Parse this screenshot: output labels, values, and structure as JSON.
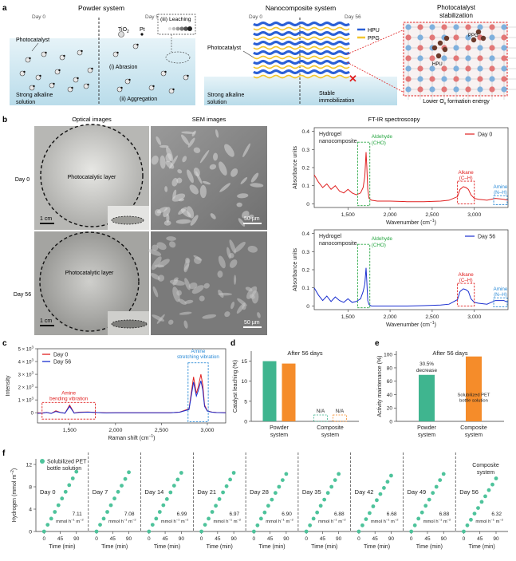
{
  "panel_a": {
    "label": "a",
    "powder": {
      "title": "Powder system",
      "day0": "Day 0",
      "day56": "Day 56",
      "photocatalyst": "Photocatalyst",
      "tio2": "TiO",
      "tio2_sub": "2",
      "pt": "Pt",
      "leaching": "(iii) Leaching",
      "abrasion": "(i) Abrasion",
      "aggregation": "(ii) Aggregation",
      "solution": [
        "Strong alkaline",
        "solution"
      ]
    },
    "nano": {
      "title": "Nanocomposite system",
      "day0": "Day 0",
      "day56": "Day 56",
      "photocatalyst": "Photocatalyst",
      "legend_hpu": "HPU",
      "legend_ppg": "PPG",
      "stable": [
        "Stable",
        "immobilization"
      ],
      "solution": [
        "Strong alkaline",
        "solution"
      ]
    },
    "stab": {
      "title": [
        "Photocatalyst",
        "stabilization"
      ],
      "ppg": "PPG",
      "hpu": "HPU",
      "footer_pre": "Lower O",
      "footer_sub": "v",
      "footer_post": " formation energy"
    },
    "colors": {
      "water": "#d7ecf3",
      "hpu": "#2a5fd6",
      "ppg": "#f2c62f",
      "red": "#e02020"
    }
  },
  "panel_b": {
    "label": "b",
    "col_optical": "Optical images",
    "col_sem": "SEM images",
    "col_ftir": "FT-IR spectroscopy",
    "row_day0": "Day 0",
    "row_day56": "Day 56",
    "photocatalytic_layer": "Photocatalytic layer",
    "scale_1cm": "1 cm",
    "scale_50um": "50 µm",
    "hydrogel": [
      "Hydrogel",
      "nanocomposite"
    ],
    "aldehyde": [
      "Aldehyde",
      "(CHO)"
    ],
    "alkane": [
      "Alkane",
      "(C–H)"
    ],
    "amine": [
      "Amine",
      "(N–H)"
    ],
    "xlabel": "Wavenumber (cm",
    "xlabel_sup": "−1",
    "xlabel_end": ")",
    "ylabel": "Absorbance units",
    "legend_day0": "Day 0",
    "legend_day56": "Day 56",
    "yticks": [
      "0",
      "0.1",
      "0.2",
      "0.3",
      "0.4"
    ],
    "xticks": [
      "1,500",
      "2,000",
      "2,500",
      "3,000"
    ]
  },
  "panel_c": {
    "label": "c",
    "legend": [
      "Day 0",
      "Day 56"
    ],
    "yticks": [
      "0",
      "1 × 10",
      "2 × 10",
      "3 × 10",
      "4 × 10",
      "5 × 10"
    ],
    "ytick_exp": "3",
    "ylabel": "Intensity",
    "xticks": [
      "1,500",
      "2,000",
      "2,500",
      "3,000"
    ],
    "xlabel": "Raman shift (cm",
    "xlabel_sup": "−1",
    "xlabel_end": ")",
    "amine_bending": [
      "Amine",
      "bending vibration"
    ],
    "amine_stretching": [
      "Amine",
      "stretching vibration"
    ]
  },
  "panel_d": {
    "label": "d",
    "title": "After 56 days",
    "ylabel": "Catalyst leaching (%)",
    "yticks": [
      "0",
      "5",
      "10",
      "15"
    ],
    "categories": [
      "Powder",
      "system",
      "Composite",
      "system"
    ],
    "na": "N/A"
  },
  "panel_e": {
    "label": "e",
    "title": "After 56 days",
    "ylabel": "Activity maintenance (%)",
    "yticks": [
      "0",
      "20",
      "40",
      "60",
      "80",
      "100"
    ],
    "decrease": [
      "30.5%",
      "decrease"
    ],
    "solubilized": [
      "Solubilized PET",
      "bottle solution"
    ],
    "categories": [
      "Powder",
      "system",
      "Composite",
      "system"
    ]
  },
  "panel_f": {
    "label": "f",
    "legend": [
      "Solubilized PET",
      "bottle solution"
    ],
    "ylabel": "Hydrogen (mmol m",
    "ylabel_sup": "−2",
    "ylabel_end": ")",
    "yticks": [
      "0",
      "4",
      "8",
      "12"
    ],
    "xticks": [
      "0",
      "45",
      "90"
    ],
    "xlabel": "Time (min)",
    "composite": [
      "Composite",
      "system"
    ],
    "rate_unit_pre": "mmol h",
    "rate_unit_sup1": "−1",
    "rate_unit_mid": " m",
    "rate_unit_sup2": "−2"
  },
  "chart_data": [
    {
      "type": "line",
      "panel": "b-day0",
      "title": "Hydrogel nanocomposite",
      "xlabel": "Wavenumber (cm−1)",
      "ylabel": "Absorbance units",
      "ylim": [
        -0.02,
        0.42
      ],
      "xlim": [
        1100,
        3400
      ],
      "series": [
        {
          "name": "Day 0",
          "color": "#e02020",
          "x": [
            1100,
            1150,
            1200,
            1250,
            1300,
            1350,
            1400,
            1450,
            1500,
            1550,
            1600,
            1650,
            1680,
            1700,
            1715,
            1725,
            1735,
            1750,
            1780,
            1850,
            2000,
            2200,
            2400,
            2600,
            2700,
            2800,
            2830,
            2870,
            2900,
            2930,
            2960,
            3000,
            3050,
            3150,
            3250,
            3350,
            3400
          ],
          "y": [
            0.16,
            0.12,
            0.09,
            0.11,
            0.08,
            0.1,
            0.07,
            0.06,
            0.08,
            0.06,
            0.05,
            0.06,
            0.09,
            0.15,
            0.285,
            0.2,
            0.08,
            0.03,
            0.02,
            0.015,
            0.015,
            0.012,
            0.012,
            0.015,
            0.02,
            0.04,
            0.08,
            0.095,
            0.09,
            0.08,
            0.05,
            0.03,
            0.025,
            0.02,
            0.03,
            0.025,
            0.02
          ]
        }
      ]
    },
    {
      "type": "line",
      "panel": "b-day56",
      "title": "Hydrogel nanocomposite",
      "xlabel": "Wavenumber (cm−1)",
      "ylabel": "Absorbance units",
      "ylim": [
        -0.02,
        0.42
      ],
      "xlim": [
        1100,
        3400
      ],
      "series": [
        {
          "name": "Day 56",
          "color": "#1a2fd0",
          "x": [
            1100,
            1150,
            1200,
            1250,
            1300,
            1350,
            1400,
            1450,
            1500,
            1550,
            1600,
            1650,
            1680,
            1700,
            1715,
            1725,
            1735,
            1750,
            1780,
            1850,
            2000,
            2200,
            2400,
            2600,
            2700,
            2800,
            2830,
            2870,
            2900,
            2930,
            2960,
            3000,
            3050,
            3150,
            3250,
            3350,
            3400
          ],
          "y": [
            0.1,
            0.06,
            0.03,
            0.055,
            0.025,
            0.05,
            0.03,
            0.02,
            0.04,
            0.02,
            0.025,
            0.04,
            0.08,
            0.12,
            0.21,
            0.13,
            0.03,
            0.008,
            0.0,
            0.0,
            0.0,
            0.0,
            0.002,
            0.005,
            0.01,
            0.035,
            0.08,
            0.095,
            0.09,
            0.08,
            0.04,
            0.02,
            0.015,
            0.01,
            0.03,
            0.03,
            0.02
          ]
        }
      ]
    },
    {
      "type": "line",
      "panel": "c",
      "xlabel": "Raman shift (cm−1)",
      "ylabel": "Intensity",
      "ylim": [
        -800,
        5000
      ],
      "xlim": [
        1150,
        3200
      ],
      "series": [
        {
          "name": "Day 0",
          "color": "#e02020",
          "x": [
            1150,
            1200,
            1250,
            1300,
            1350,
            1400,
            1450,
            1500,
            1550,
            1600,
            1700,
            1800,
            1900,
            2000,
            2200,
            2400,
            2600,
            2700,
            2800,
            2850,
            2880,
            2900,
            2930,
            2950,
            2970,
            3000,
            3050,
            3100,
            3200
          ],
          "y": [
            0,
            -20,
            30,
            -50,
            150,
            20,
            -30,
            600,
            -20,
            40,
            60,
            20,
            -10,
            0,
            0,
            0,
            0,
            50,
            300,
            2800,
            1500,
            2000,
            3000,
            2200,
            600,
            150,
            50,
            20,
            0
          ]
        },
        {
          "name": "Day 56",
          "color": "#1a2fd0",
          "x": [
            1150,
            1200,
            1250,
            1300,
            1350,
            1400,
            1450,
            1500,
            1550,
            1600,
            1700,
            1800,
            1900,
            2000,
            2200,
            2400,
            2600,
            2700,
            2800,
            2850,
            2880,
            2900,
            2930,
            2950,
            2970,
            3000,
            3050,
            3100,
            3200
          ],
          "y": [
            -50,
            -30,
            20,
            -60,
            100,
            10,
            -40,
            500,
            -30,
            20,
            40,
            10,
            -20,
            -10,
            -10,
            -10,
            -5,
            40,
            250,
            2400,
            1300,
            1700,
            2500,
            1800,
            500,
            120,
            40,
            10,
            -10
          ]
        }
      ]
    },
    {
      "type": "bar",
      "panel": "d",
      "title": "After 56 days",
      "ylabel": "Catalyst leaching (%)",
      "ylim": [
        0,
        17.5
      ],
      "categories": [
        "Powder system",
        "Composite system"
      ],
      "series": [
        {
          "color": "#3fb58f",
          "values": [
            15.0,
            0
          ]
        },
        {
          "color": "#f58c2a",
          "values": [
            14.4,
            0
          ]
        }
      ]
    },
    {
      "type": "bar",
      "panel": "e",
      "title": "After 56 days",
      "ylabel": "Activity maintenance (%)",
      "ylim": [
        0,
        105
      ],
      "categories": [
        "Powder system",
        "Composite system"
      ],
      "values": [
        69.5,
        97
      ],
      "colors": [
        "#3fb58f",
        "#f58c2a"
      ]
    },
    {
      "type": "scatter",
      "panel": "f",
      "ylabel": "Hydrogen (mmol m−2)",
      "xlabel": "Time (min)",
      "ylim": [
        0,
        13
      ],
      "xlim": [
        -5,
        110
      ],
      "series": [
        {
          "day": "Day 0",
          "rate": "7.11",
          "points": [
            [
              0,
              0
            ],
            [
              10,
              1.2
            ],
            [
              20,
              2.3
            ],
            [
              30,
              3.5
            ],
            [
              40,
              4.7
            ],
            [
              50,
              5.9
            ],
            [
              60,
              7.1
            ],
            [
              70,
              8.3
            ],
            [
              80,
              9.5
            ],
            [
              90,
              10.7
            ]
          ]
        },
        {
          "day": "Day 7",
          "rate": "7.08",
          "points": [
            [
              0,
              0
            ],
            [
              10,
              1.2
            ],
            [
              20,
              2.3
            ],
            [
              30,
              3.5
            ],
            [
              40,
              4.7
            ],
            [
              50,
              5.9
            ],
            [
              60,
              7.1
            ],
            [
              70,
              8.2
            ],
            [
              80,
              9.4
            ],
            [
              90,
              10.6
            ]
          ]
        },
        {
          "day": "Day 14",
          "rate": "6.99",
          "points": [
            [
              0,
              0
            ],
            [
              10,
              1.2
            ],
            [
              20,
              2.3
            ],
            [
              30,
              3.5
            ],
            [
              40,
              4.7
            ],
            [
              50,
              5.8
            ],
            [
              60,
              7.0
            ],
            [
              70,
              8.2
            ],
            [
              80,
              9.3
            ],
            [
              90,
              10.5
            ]
          ]
        },
        {
          "day": "Day 21",
          "rate": "6.97",
          "points": [
            [
              0,
              0
            ],
            [
              10,
              1.2
            ],
            [
              20,
              2.3
            ],
            [
              30,
              3.5
            ],
            [
              40,
              4.6
            ],
            [
              50,
              5.8
            ],
            [
              60,
              7.0
            ],
            [
              70,
              8.1
            ],
            [
              80,
              9.3
            ],
            [
              90,
              10.5
            ]
          ]
        },
        {
          "day": "Day 28",
          "rate": "6.90",
          "points": [
            [
              0,
              0
            ],
            [
              10,
              1.1
            ],
            [
              20,
              2.3
            ],
            [
              30,
              3.4
            ],
            [
              40,
              4.6
            ],
            [
              50,
              5.7
            ],
            [
              60,
              6.9
            ],
            [
              70,
              8.0
            ],
            [
              80,
              9.2
            ],
            [
              90,
              10.3
            ]
          ]
        },
        {
          "day": "Day 35",
          "rate": "6.88",
          "points": [
            [
              0,
              0
            ],
            [
              10,
              1.1
            ],
            [
              20,
              2.3
            ],
            [
              30,
              3.4
            ],
            [
              40,
              4.6
            ],
            [
              50,
              5.7
            ],
            [
              60,
              6.9
            ],
            [
              70,
              8.0
            ],
            [
              80,
              9.2
            ],
            [
              90,
              10.3
            ]
          ]
        },
        {
          "day": "Day 42",
          "rate": "6.68",
          "points": [
            [
              0,
              0
            ],
            [
              10,
              1.1
            ],
            [
              20,
              2.2
            ],
            [
              30,
              3.3
            ],
            [
              40,
              4.5
            ],
            [
              50,
              5.6
            ],
            [
              60,
              6.7
            ],
            [
              70,
              7.8
            ],
            [
              80,
              8.9
            ],
            [
              90,
              10.0
            ]
          ]
        },
        {
          "day": "Day 49",
          "rate": "6.88",
          "points": [
            [
              0,
              0
            ],
            [
              10,
              1.1
            ],
            [
              20,
              2.3
            ],
            [
              30,
              3.4
            ],
            [
              40,
              4.6
            ],
            [
              50,
              5.7
            ],
            [
              60,
              6.9
            ],
            [
              70,
              8.0
            ],
            [
              80,
              9.2
            ],
            [
              90,
              10.3
            ]
          ]
        },
        {
          "day": "Day 56",
          "rate": "6.32",
          "points": [
            [
              0,
              0
            ],
            [
              10,
              1.1
            ],
            [
              20,
              2.1
            ],
            [
              30,
              3.2
            ],
            [
              40,
              4.2
            ],
            [
              50,
              5.3
            ],
            [
              60,
              6.3
            ],
            [
              70,
              7.4
            ],
            [
              80,
              8.4
            ],
            [
              90,
              9.5
            ]
          ]
        }
      ]
    }
  ]
}
